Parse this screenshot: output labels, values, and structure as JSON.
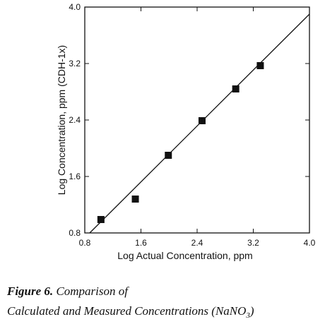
{
  "chart_data": {
    "type": "scatter",
    "x_label": "Log Actual Concentration, ppm",
    "y_label": "Log Concentration, ppm (CDH-1x)",
    "x": [
      1.03,
      1.52,
      1.99,
      2.47,
      2.95,
      3.3
    ],
    "values": [
      0.99,
      1.28,
      1.9,
      2.39,
      2.84,
      3.17
    ],
    "color": "#111111",
    "fit": {
      "x": [
        0.87,
        4.0
      ],
      "values": [
        0.8,
        3.9
      ]
    },
    "xlim": [
      0.8,
      4.0
    ],
    "ylim": [
      0.8,
      4.0
    ],
    "xticks": [
      0.8,
      1.6,
      2.4,
      3.2,
      {
        "value": 4,
        "label": "4.0"
      }
    ],
    "yticks": [
      0.8,
      1.6,
      2.4,
      3.2,
      {
        "value": 4,
        "label": "4.0"
      }
    ],
    "grid": false
  },
  "caption": {
    "label": "Figure 6.",
    "lines": [
      "Comparison of",
      "Calculated and Measured Concentrations (NaNO"
    ],
    "subscript": "3",
    "closing": ")"
  }
}
